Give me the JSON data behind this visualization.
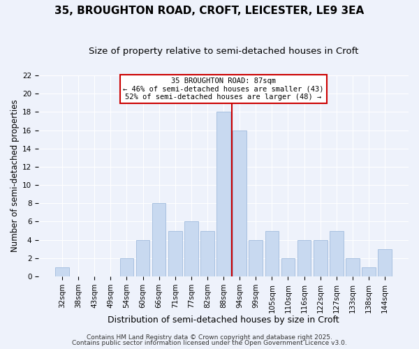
{
  "title1": "35, BROUGHTON ROAD, CROFT, LEICESTER, LE9 3EA",
  "title2": "Size of property relative to semi-detached houses in Croft",
  "xlabel": "Distribution of semi-detached houses by size in Croft",
  "ylabel": "Number of semi-detached properties",
  "categories": [
    "32sqm",
    "38sqm",
    "43sqm",
    "49sqm",
    "54sqm",
    "60sqm",
    "66sqm",
    "71sqm",
    "77sqm",
    "82sqm",
    "88sqm",
    "94sqm",
    "99sqm",
    "105sqm",
    "110sqm",
    "116sqm",
    "122sqm",
    "127sqm",
    "133sqm",
    "138sqm",
    "144sqm"
  ],
  "values": [
    1,
    0,
    0,
    0,
    2,
    4,
    8,
    5,
    6,
    5,
    18,
    16,
    4,
    5,
    2,
    4,
    4,
    5,
    2,
    1,
    3
  ],
  "bar_color": "#c8d9f0",
  "bar_edgecolor": "#a8c0e0",
  "highlight_index": 10,
  "annotation_title": "35 BROUGHTON ROAD: 87sqm",
  "annotation_line1": "← 46% of semi-detached houses are smaller (43)",
  "annotation_line2": "52% of semi-detached houses are larger (48) →",
  "annotation_box_color": "#ffffff",
  "annotation_box_edgecolor": "#cc0000",
  "vline_color": "#cc0000",
  "ylim": [
    0,
    22
  ],
  "yticks": [
    0,
    2,
    4,
    6,
    8,
    10,
    12,
    14,
    16,
    18,
    20,
    22
  ],
  "background_color": "#eef2fb",
  "footer1": "Contains HM Land Registry data © Crown copyright and database right 2025.",
  "footer2": "Contains public sector information licensed under the Open Government Licence v3.0.",
  "title1_fontsize": 11,
  "title2_fontsize": 9.5,
  "xlabel_fontsize": 9,
  "ylabel_fontsize": 8.5,
  "tick_fontsize": 7.5,
  "footer_fontsize": 6.5,
  "ann_fontsize": 7.5
}
